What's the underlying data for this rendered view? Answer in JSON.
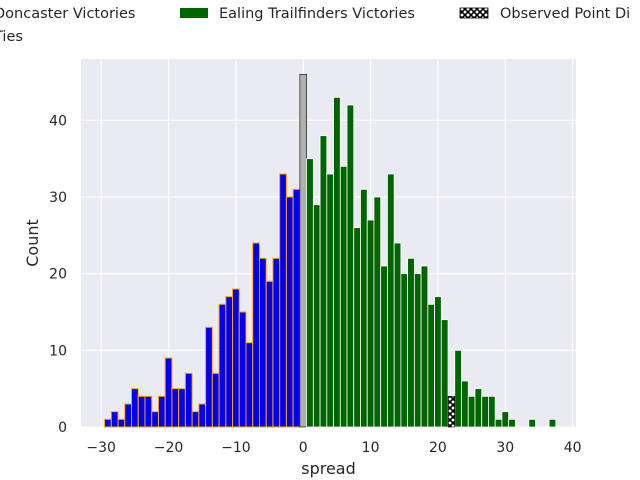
{
  "chart_data": {
    "type": "bar",
    "xlabel": "spread",
    "ylabel": "Count",
    "xlim": [
      -33,
      40.5
    ],
    "ylim": [
      0,
      48
    ],
    "x_ticks": [
      -30,
      -20,
      -10,
      0,
      10,
      20,
      30,
      40
    ],
    "y_ticks": [
      0,
      10,
      20,
      30,
      40
    ],
    "grid": true,
    "legend_position": "top",
    "colors": {
      "doncaster": "#0000ee",
      "doncaster_edge": "#ffa500",
      "ealing": "#006400",
      "ties": "#b0b0b0",
      "observed": "#000000",
      "background": "#eaeaf2"
    },
    "legend": [
      {
        "label": "Doncaster Victories",
        "swatch": "doncaster"
      },
      {
        "label": "Ealing Trailfinders Victories",
        "swatch": "ealing"
      },
      {
        "label": "Observed Point Di",
        "swatch": "observed"
      },
      {
        "label": "Ties",
        "swatch": "ties"
      }
    ],
    "series": [
      {
        "key": "doncaster",
        "name": "Doncaster Victories",
        "x": [
          -29,
          -28,
          -27,
          -26,
          -25,
          -24,
          -23,
          -22,
          -21,
          -20,
          -19,
          -18,
          -17,
          -16,
          -15,
          -14,
          -13,
          -12,
          -11,
          -10,
          -9,
          -8,
          -7,
          -6,
          -5,
          -4,
          -3,
          -2,
          -1
        ],
        "values": [
          1,
          2,
          1,
          3,
          5,
          4,
          4,
          2,
          4,
          9,
          5,
          5,
          7,
          2,
          3,
          13,
          7,
          16,
          17,
          18,
          15,
          11,
          24,
          22,
          19,
          22,
          33,
          30,
          31
        ]
      },
      {
        "key": "ties",
        "name": "Ties",
        "x": [
          0
        ],
        "values": [
          46
        ]
      },
      {
        "key": "ealing",
        "name": "Ealing Trailfinders Victories",
        "x": [
          1,
          2,
          3,
          4,
          5,
          6,
          7,
          8,
          9,
          10,
          11,
          12,
          13,
          14,
          15,
          16,
          17,
          18,
          19,
          20,
          21,
          22,
          23,
          24,
          25,
          26,
          27,
          28,
          29,
          30,
          31,
          34,
          37
        ],
        "values": [
          35,
          29,
          38,
          33,
          43,
          34,
          42,
          26,
          31,
          27,
          30,
          21,
          33,
          24,
          20,
          22,
          20,
          21,
          16,
          17,
          14,
          4,
          10,
          6,
          4,
          5,
          4,
          4,
          1,
          2,
          1,
          1,
          1
        ]
      },
      {
        "key": "observed",
        "name": "Observed Point Di",
        "x": [
          22
        ],
        "values": [
          4
        ]
      }
    ]
  }
}
